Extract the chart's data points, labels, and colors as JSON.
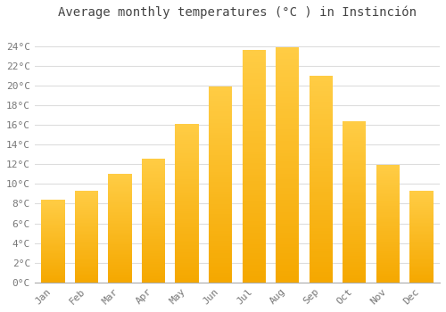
{
  "title": "Average monthly temperatures (°C ) in Instinción",
  "months": [
    "Jan",
    "Feb",
    "Mar",
    "Apr",
    "May",
    "Jun",
    "Jul",
    "Aug",
    "Sep",
    "Oct",
    "Nov",
    "Dec"
  ],
  "values": [
    8.4,
    9.3,
    11.0,
    12.6,
    16.1,
    19.9,
    23.6,
    23.9,
    21.0,
    16.4,
    11.9,
    9.3
  ],
  "bar_color_bottom": "#F5A800",
  "bar_color_top": "#FFC840",
  "background_color": "#FFFFFF",
  "plot_bg_color": "#FFFFFF",
  "grid_color": "#DDDDDD",
  "text_color": "#777777",
  "title_color": "#444444",
  "ylim": [
    0,
    26
  ],
  "yticks": [
    0,
    2,
    4,
    6,
    8,
    10,
    12,
    14,
    16,
    18,
    20,
    22,
    24
  ],
  "ytick_labels": [
    "0°C",
    "2°C",
    "4°C",
    "6°C",
    "8°C",
    "10°C",
    "12°C",
    "14°C",
    "16°C",
    "18°C",
    "20°C",
    "22°C",
    "24°C"
  ],
  "title_fontsize": 10,
  "tick_fontsize": 8,
  "bar_width": 0.7,
  "figsize": [
    5.0,
    3.5
  ],
  "dpi": 100
}
